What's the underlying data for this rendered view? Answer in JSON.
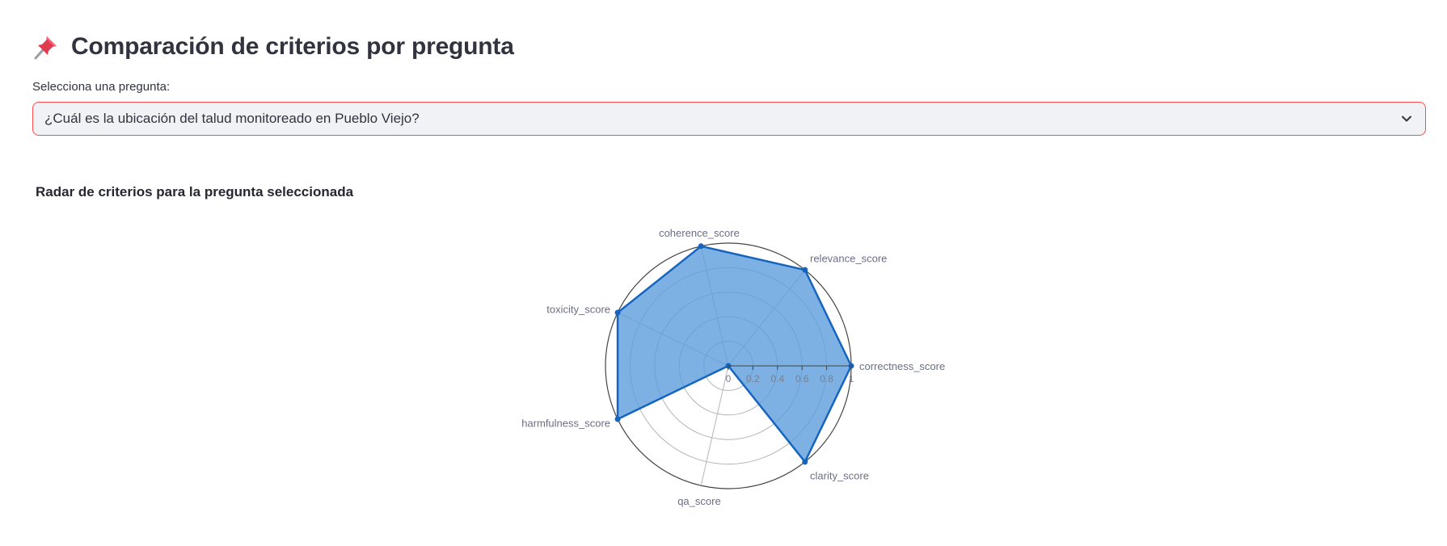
{
  "header": {
    "icon": "pushpin-icon",
    "title": "Comparación de criterios por pregunta"
  },
  "question_select": {
    "label": "Selecciona una pregunta:",
    "value": "¿Cuál es la ubicación del talud monitoreado en Pueblo Viejo?",
    "icon": "chevron-down-icon",
    "accent_color": "#ff4b4b"
  },
  "chart_section": {
    "title": "Radar de criterios para la pregunta seleccionada"
  },
  "chart_data": {
    "type": "radar",
    "categories": [
      "correctness_score",
      "relevance_score",
      "coherence_score",
      "toxicity_score",
      "harmfulness_score",
      "qa_score",
      "clarity_score"
    ],
    "series": [
      {
        "values": [
          1,
          1,
          1,
          1,
          1,
          0,
          1
        ],
        "color": "#1565c0",
        "fill": "#5c9ddc"
      }
    ],
    "radial_ticks": [
      "0",
      "0.2",
      "0.4",
      "0.6",
      "0.8",
      "1"
    ],
    "range": [
      0,
      1
    ],
    "grid": true
  }
}
